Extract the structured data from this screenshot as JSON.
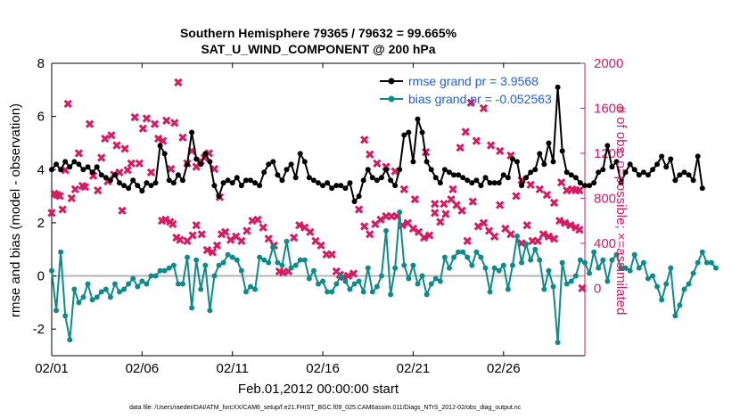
{
  "chart_data": {
    "type": "line",
    "title_line1": "Southern Hemisphere 79365 / 79632 = 99.665%",
    "title_line2": "SAT_U_WIND_COMPONENT @ 200 hPa",
    "xlabel": "Feb.01,2012 00:00:00 start",
    "ylabel_left": "rmse and bias (model - observation)",
    "ylabel_right": "# of obs: o=possible; ×=assimilated",
    "footer": "data file: /Users/raeder/DAI/ATM_forcXX/CAM6_setup/f.e21.FHIST_BGC.f09_025.CAM6assim.011/Diags_NTrS_2012-02/obs_diag_output.nc",
    "xlim": [
      0,
      29.5
    ],
    "ylim_left": [
      -3,
      8
    ],
    "ylim_right": [
      -600,
      2000
    ],
    "x_ticks": [
      0,
      5,
      10,
      15,
      20,
      25
    ],
    "x_tick_labels": [
      "02/01",
      "02/06",
      "02/11",
      "02/16",
      "02/21",
      "02/26"
    ],
    "y_left_ticks": [
      -2,
      0,
      2,
      4,
      6,
      8
    ],
    "y_left_tick_labels": [
      "-2",
      "0",
      "2",
      "4",
      "6",
      "8"
    ],
    "y_right_ticks": [
      0,
      400,
      800,
      1200,
      1600,
      2000
    ],
    "y_right_tick_labels": [
      "0",
      "400",
      "800",
      "1200",
      "1600",
      "2000"
    ],
    "legend": {
      "position": "top-right",
      "entries": [
        {
          "label": "rmse grand pr = 3.9568",
          "color": "#000000"
        },
        {
          "label": "bias grand pr = -0.052563",
          "color": "#0f8a8a"
        }
      ]
    },
    "colors": {
      "rmse": "#000000",
      "bias": "#0f8a8a",
      "obs_count": "#d81b60",
      "zero_line": "#b4b4b4",
      "right_axis": "#d81b60",
      "legend_text": "#1f5fe6"
    },
    "time_step_days": 0.25,
    "series": [
      {
        "name": "rmse",
        "axis": "left",
        "values": [
          4.0,
          4.2,
          4.0,
          4.3,
          4.1,
          4.3,
          4.2,
          4.0,
          4.1,
          3.9,
          4.1,
          3.8,
          3.7,
          3.6,
          3.8,
          3.5,
          3.4,
          3.3,
          3.6,
          3.4,
          3.2,
          3.5,
          3.4,
          3.5,
          4.9,
          4.6,
          3.6,
          3.5,
          3.8,
          3.6,
          4.2,
          5.4,
          4.4,
          4.2,
          4.6,
          4.3,
          3.4,
          3.0,
          3.5,
          3.6,
          3.5,
          3.7,
          3.4,
          3.6,
          3.6,
          3.5,
          3.4,
          3.9,
          4.2,
          4.3,
          3.8,
          3.6,
          4.0,
          4.2,
          3.7,
          4.6,
          4.3,
          3.7,
          3.6,
          3.5,
          3.4,
          3.5,
          3.3,
          3.4,
          3.4,
          3.3,
          3.5,
          2.8,
          3.0,
          3.6,
          4.0,
          3.7,
          3.6,
          3.7,
          4.0,
          3.6,
          3.4,
          4.0,
          5.3,
          5.4,
          4.3,
          5.9,
          5.4,
          4.3,
          4.0,
          3.7,
          3.5,
          4.0,
          3.9,
          3.8,
          3.8,
          3.7,
          3.6,
          3.5,
          3.6,
          3.4,
          3.7,
          3.5,
          3.5,
          3.5,
          3.8,
          3.7,
          4.4,
          4.3,
          3.4,
          3.7,
          3.9,
          4.0,
          4.6,
          4.2,
          5.0,
          4.3,
          7.1,
          4.7,
          3.9,
          3.8,
          3.7,
          3.5,
          3.4,
          3.4,
          3.5,
          3.9,
          4.0,
          4.9,
          4.1,
          4.3,
          3.5,
          3.9,
          4.2,
          4.0,
          3.8,
          3.9,
          3.8,
          4.0,
          4.2,
          4.5,
          4.1,
          4.4,
          3.6,
          3.8,
          3.9,
          3.8,
          3.6,
          4.5,
          3.3
        ]
      },
      {
        "name": "bias",
        "axis": "left",
        "values": [
          0.2,
          -1.3,
          0.9,
          -1.5,
          -2.4,
          -0.5,
          -1.0,
          -0.8,
          -0.3,
          -0.9,
          -0.8,
          -0.6,
          -0.5,
          -0.8,
          -0.3,
          -0.6,
          -0.5,
          -0.3,
          -0.1,
          -0.4,
          -0.2,
          -0.3,
          0.0,
          0.0,
          0.2,
          0.2,
          0.3,
          0.4,
          -0.3,
          -0.3,
          0.7,
          -1.2,
          0.6,
          -0.5,
          0.4,
          -1.3,
          0.0,
          0.4,
          0.5,
          0.8,
          0.7,
          0.6,
          0.2,
          -0.6,
          -0.4,
          -0.5,
          0.7,
          0.6,
          0.5,
          1.1,
          0.5,
          0.4,
          1.3,
          0.3,
          0.4,
          0.6,
          0.6,
          -0.1,
          0.2,
          -0.3,
          -0.2,
          -0.6,
          -0.6,
          -0.3,
          0.0,
          -0.2,
          -0.5,
          -0.3,
          -0.2,
          -0.6,
          0.3,
          -0.6,
          -0.4,
          0.0,
          1.7,
          -0.7,
          0.3,
          2.4,
          0.4,
          -0.1,
          0.4,
          -0.3,
          0.0,
          -0.7,
          -0.3,
          -0.1,
          -0.2,
          0.7,
          0.3,
          0.7,
          0.9,
          0.9,
          0.7,
          0.4,
          0.9,
          0.7,
          0.3,
          -0.6,
          0.3,
          0.2,
          0.4,
          -0.5,
          0.4,
          1.5,
          0.5,
          1.2,
          0.6,
          1.0,
          0.6,
          -0.5,
          0.2,
          -0.4,
          -2.5,
          0.5,
          -0.3,
          -0.2,
          0.0,
          0.6,
          0.5,
          0.1,
          0.9,
          0.3,
          0.6,
          -0.2,
          0.6,
          0.8,
          0.3,
          0.3,
          0.2,
          0.8,
          0.3,
          0.5,
          -0.1,
          0.0,
          -0.4,
          -0.9,
          -0.3,
          0.3,
          -1.5,
          -1.1,
          -0.5,
          -0.3,
          0.1,
          0.5,
          0.9,
          0.5,
          0.5,
          0.3
        ]
      },
      {
        "name": "observations (assimilated)",
        "axis": "right",
        "marker": "x",
        "points": [
          [
            0.0,
            670
          ],
          [
            0.15,
            840
          ],
          [
            0.3,
            830
          ],
          [
            0.45,
            820
          ],
          [
            0.6,
            700
          ],
          [
            0.75,
            1050
          ],
          [
            0.9,
            1640
          ],
          [
            1.1,
            800
          ],
          [
            1.3,
            880
          ],
          [
            1.5,
            1200
          ],
          [
            1.7,
            910
          ],
          [
            1.85,
            900
          ],
          [
            2.1,
            1460
          ],
          [
            2.3,
            1000
          ],
          [
            2.55,
            870
          ],
          [
            2.75,
            1160
          ],
          [
            2.95,
            1330
          ],
          [
            3.1,
            950
          ],
          [
            3.3,
            1360
          ],
          [
            3.45,
            1010
          ],
          [
            3.6,
            1270
          ],
          [
            3.75,
            1030
          ],
          [
            3.9,
            690
          ],
          [
            4.05,
            1240
          ],
          [
            4.2,
            1050
          ],
          [
            4.4,
            1110
          ],
          [
            4.6,
            1520
          ],
          [
            4.85,
            1110
          ],
          [
            5.05,
            1420
          ],
          [
            5.25,
            1510
          ],
          [
            5.5,
            1030
          ],
          [
            5.7,
            1460
          ],
          [
            5.9,
            1330
          ],
          [
            6.15,
            1310
          ],
          [
            6.35,
            1490
          ],
          [
            6.6,
            1060
          ],
          [
            6.8,
            1470
          ],
          [
            7.0,
            1830
          ],
          [
            7.25,
            1340
          ],
          [
            7.5,
            1110
          ],
          [
            7.75,
            1220
          ],
          [
            8.0,
            1080
          ],
          [
            8.25,
            1130
          ],
          [
            8.45,
            1160
          ],
          [
            8.7,
            1200
          ],
          [
            9.0,
            1060
          ],
          [
            9.3,
            810
          ]
        ]
      },
      {
        "name": "observations (possible, low set)",
        "axis": "right",
        "marker": "x",
        "points": [
          [
            6.1,
            600
          ],
          [
            6.3,
            610
          ],
          [
            6.55,
            590
          ],
          [
            6.7,
            570
          ],
          [
            6.9,
            450
          ],
          [
            7.1,
            430
          ],
          [
            7.5,
            420
          ],
          [
            7.8,
            470
          ],
          [
            8.0,
            560
          ],
          [
            8.3,
            480
          ],
          [
            8.6,
            340
          ],
          [
            8.9,
            320
          ],
          [
            9.15,
            380
          ],
          [
            9.4,
            480
          ],
          [
            9.6,
            500
          ],
          [
            9.9,
            430
          ],
          [
            10.2,
            460
          ],
          [
            10.5,
            420
          ],
          [
            10.8,
            510
          ],
          [
            11.1,
            600
          ],
          [
            11.4,
            610
          ],
          [
            11.7,
            540
          ],
          [
            12.0,
            440
          ],
          [
            12.3,
            380
          ],
          [
            12.6,
            150
          ],
          [
            12.8,
            140
          ],
          [
            13.1,
            150
          ],
          [
            13.4,
            450
          ],
          [
            13.7,
            560
          ],
          [
            14.0,
            540
          ],
          [
            14.3,
            500
          ],
          [
            14.6,
            420
          ],
          [
            14.9,
            380
          ],
          [
            15.2,
            300
          ],
          [
            15.5,
            300
          ],
          [
            15.75,
            150
          ],
          [
            15.95,
            120
          ],
          [
            16.15,
            100
          ],
          [
            16.4,
            110
          ],
          [
            16.7,
            130
          ],
          [
            17.0,
            700
          ],
          [
            17.3,
            550
          ],
          [
            17.6,
            480
          ],
          [
            17.9,
            570
          ],
          [
            18.2,
            610
          ],
          [
            18.5,
            640
          ],
          [
            18.8,
            640
          ],
          [
            19.1,
            640
          ],
          [
            19.4,
            560
          ],
          [
            19.7,
            580
          ],
          [
            20.0,
            530
          ],
          [
            20.3,
            500
          ],
          [
            20.6,
            450
          ],
          [
            20.9,
            470
          ],
          [
            21.2,
            670
          ],
          [
            21.5,
            590
          ],
          [
            21.8,
            660
          ],
          [
            22.1,
            790
          ],
          [
            22.4,
            740
          ],
          [
            22.7,
            690
          ],
          [
            23.0,
            420
          ],
          [
            23.3,
            770
          ],
          [
            23.6,
            550
          ],
          [
            23.9,
            580
          ],
          [
            24.2,
            510
          ],
          [
            24.5,
            460
          ],
          [
            24.8,
            740
          ],
          [
            25.1,
            530
          ],
          [
            25.4,
            480
          ],
          [
            25.7,
            820
          ],
          [
            26.0,
            400
          ],
          [
            26.3,
            560
          ],
          [
            26.6,
            420
          ],
          [
            26.9,
            420
          ],
          [
            27.2,
            480
          ],
          [
            27.5,
            460
          ],
          [
            27.8,
            440
          ],
          [
            28.1,
            600
          ],
          [
            28.4,
            580
          ],
          [
            28.7,
            560
          ],
          [
            29.0,
            540
          ],
          [
            29.2,
            520
          ]
        ]
      },
      {
        "name": "observations (assimilated, high set)",
        "axis": "right",
        "marker": "x",
        "points": [
          [
            17.3,
            1320
          ],
          [
            17.6,
            1190
          ],
          [
            18.0,
            1110
          ],
          [
            18.5,
            1080
          ],
          [
            19.0,
            1040
          ],
          [
            19.5,
            880
          ],
          [
            20.1,
            790
          ],
          [
            20.7,
            1210
          ],
          [
            21.2,
            750
          ],
          [
            21.7,
            750
          ],
          [
            22.2,
            880
          ],
          [
            22.6,
            1250
          ],
          [
            22.9,
            1390
          ],
          [
            23.2,
            1650
          ],
          [
            23.5,
            1310
          ],
          [
            23.9,
            1600
          ],
          [
            24.3,
            1270
          ],
          [
            24.8,
            1220
          ],
          [
            25.4,
            1180
          ],
          [
            26.0,
            960
          ],
          [
            26.5,
            920
          ],
          [
            27.0,
            880
          ],
          [
            27.4,
            830
          ],
          [
            27.8,
            760
          ],
          [
            28.2,
            940
          ],
          [
            28.5,
            870
          ],
          [
            28.8,
            880
          ],
          [
            29.0,
            870
          ],
          [
            29.2,
            870
          ],
          [
            29.35,
            0
          ]
        ]
      }
    ]
  }
}
